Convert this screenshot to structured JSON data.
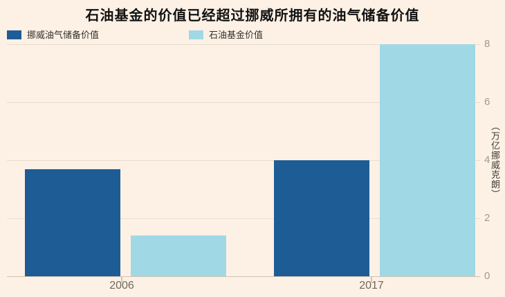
{
  "title": "石油基金的价值已经超过挪威所拥有的油气储备价值",
  "colors": {
    "background": "#fdf1e5",
    "reserves": "#1e5c96",
    "fund": "#a1d8e6",
    "gridline": "#e8ddcf",
    "baseline": "#cfc3b1",
    "y_tick_text": "#a29889",
    "x_tick_text": "#6f685e",
    "title_text": "#111111",
    "legend_text": "#33312d",
    "unit_text": "#3f3b34"
  },
  "legend": [
    {
      "label": "挪威油气储备价值",
      "color_key": "reserves"
    },
    {
      "label": "石油基金价值",
      "color_key": "fund"
    }
  ],
  "chart_data": {
    "type": "bar",
    "categories": [
      "2006",
      "2017"
    ],
    "series": [
      {
        "name": "挪威油气储备价值",
        "color_key": "reserves",
        "values": [
          3.7,
          4.0
        ]
      },
      {
        "name": "石油基金价值",
        "color_key": "fund",
        "values": [
          1.4,
          8.0
        ]
      }
    ],
    "title": "石油基金的价值已经超过挪威所拥有的油气储备价值",
    "xlabel": "",
    "ylabel": "（万亿挪威克朗）",
    "yticks": [
      0,
      2,
      4,
      6,
      8
    ],
    "ylim": [
      0,
      8
    ],
    "grid": true,
    "legend_position": "top-left",
    "y_axis_side": "right"
  }
}
